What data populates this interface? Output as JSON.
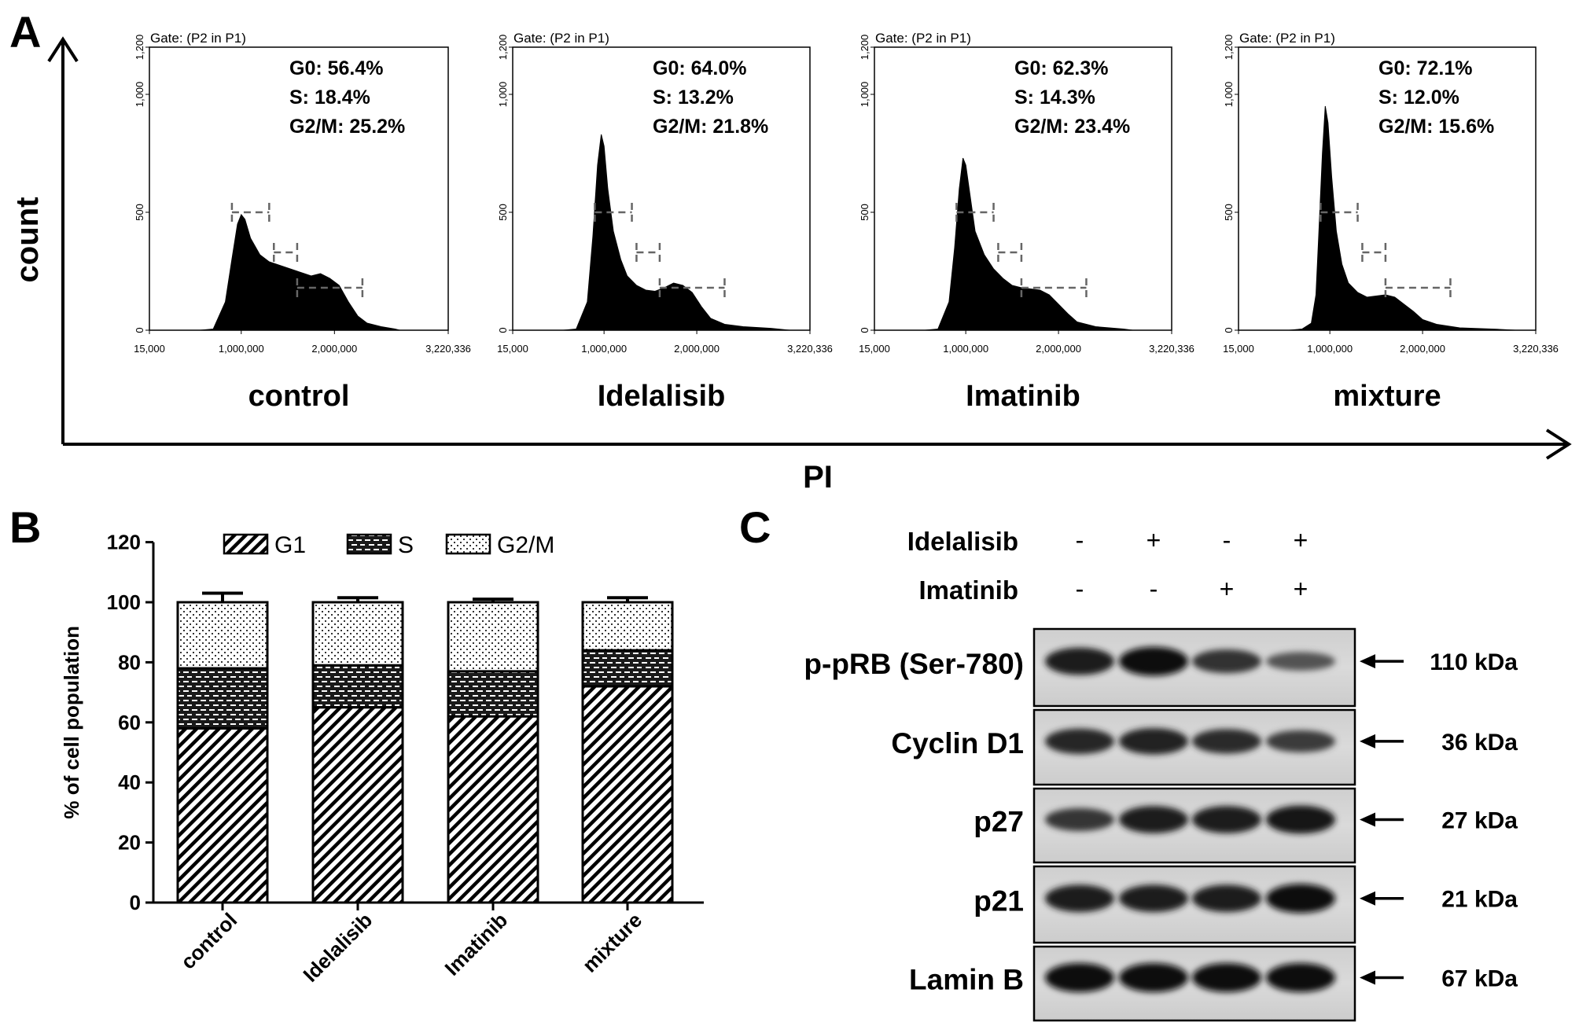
{
  "panel_labels": {
    "a": "A",
    "b": "B",
    "c": "C"
  },
  "panel_a": {
    "y_axis_label": "count",
    "x_axis_label": "PI"
  },
  "chart_data": [
    {
      "type": "area",
      "panel": "A",
      "gate_label": "Gate: (P2 in P1)",
      "y_ticks": [
        "0",
        "500",
        "1,000",
        "1,200"
      ],
      "x_ticks": [
        "15,000",
        "1,000,000",
        "2,000,000",
        "3,220,336"
      ],
      "xlim": [
        15000,
        3220336
      ],
      "ylim": [
        0,
        1200
      ],
      "gate_markers": [
        {
          "x_range": [
            900000,
            1300000
          ],
          "y": 500
        },
        {
          "x_range": [
            1350000,
            1600000
          ],
          "y": 330
        },
        {
          "x_range": [
            1600000,
            2300000
          ],
          "y": 180
        }
      ],
      "histograms": [
        {
          "name": "control",
          "stats": [
            "G0: 56.4%",
            "S: 18.4%",
            "G2/M: 25.2%"
          ],
          "peak": 490,
          "points": [
            [
              560000,
              0
            ],
            [
              700000,
              5
            ],
            [
              830000,
              120
            ],
            [
              900000,
              300
            ],
            [
              960000,
              450
            ],
            [
              1000000,
              490
            ],
            [
              1040000,
              470
            ],
            [
              1100000,
              390
            ],
            [
              1200000,
              320
            ],
            [
              1300000,
              290
            ],
            [
              1450000,
              270
            ],
            [
              1600000,
              250
            ],
            [
              1750000,
              230
            ],
            [
              1850000,
              240
            ],
            [
              1950000,
              220
            ],
            [
              2050000,
              190
            ],
            [
              2150000,
              120
            ],
            [
              2250000,
              60
            ],
            [
              2350000,
              30
            ],
            [
              2500000,
              15
            ],
            [
              2650000,
              5
            ],
            [
              2700000,
              0
            ]
          ]
        },
        {
          "name": "Idelalisib",
          "stats": [
            "G0: 64.0%",
            "S: 13.2%",
            "G2/M: 21.8%"
          ],
          "peak": 830,
          "points": [
            [
              560000,
              0
            ],
            [
              700000,
              5
            ],
            [
              820000,
              120
            ],
            [
              880000,
              400
            ],
            [
              930000,
              700
            ],
            [
              970000,
              830
            ],
            [
              1000000,
              780
            ],
            [
              1040000,
              600
            ],
            [
              1100000,
              420
            ],
            [
              1180000,
              300
            ],
            [
              1250000,
              230
            ],
            [
              1350000,
              190
            ],
            [
              1450000,
              170
            ],
            [
              1550000,
              165
            ],
            [
              1650000,
              180
            ],
            [
              1750000,
              200
            ],
            [
              1850000,
              190
            ],
            [
              1950000,
              160
            ],
            [
              2050000,
              100
            ],
            [
              2150000,
              50
            ],
            [
              2300000,
              25
            ],
            [
              2500000,
              15
            ],
            [
              2800000,
              8
            ],
            [
              3000000,
              0
            ]
          ]
        },
        {
          "name": "Imatinib",
          "stats": [
            "G0: 62.3%",
            "S: 14.3%",
            "G2/M: 23.4%"
          ],
          "peak": 730,
          "points": [
            [
              560000,
              0
            ],
            [
              700000,
              5
            ],
            [
              820000,
              120
            ],
            [
              880000,
              350
            ],
            [
              930000,
              600
            ],
            [
              970000,
              730
            ],
            [
              1000000,
              700
            ],
            [
              1050000,
              560
            ],
            [
              1100000,
              420
            ],
            [
              1200000,
              320
            ],
            [
              1300000,
              260
            ],
            [
              1400000,
              220
            ],
            [
              1500000,
              190
            ],
            [
              1600000,
              180
            ],
            [
              1700000,
              175
            ],
            [
              1800000,
              170
            ],
            [
              1900000,
              150
            ],
            [
              2000000,
              110
            ],
            [
              2100000,
              70
            ],
            [
              2200000,
              35
            ],
            [
              2400000,
              15
            ],
            [
              2700000,
              5
            ],
            [
              2800000,
              0
            ]
          ]
        },
        {
          "name": "mixture",
          "stats": [
            "G0: 72.1%",
            "S: 12.0%",
            "G2/M: 15.6%"
          ],
          "peak": 950,
          "points": [
            [
              560000,
              0
            ],
            [
              700000,
              5
            ],
            [
              800000,
              30
            ],
            [
              850000,
              150
            ],
            [
              880000,
              400
            ],
            [
              920000,
              750
            ],
            [
              950000,
              950
            ],
            [
              980000,
              880
            ],
            [
              1020000,
              650
            ],
            [
              1070000,
              420
            ],
            [
              1130000,
              280
            ],
            [
              1200000,
              200
            ],
            [
              1300000,
              160
            ],
            [
              1400000,
              140
            ],
            [
              1500000,
              145
            ],
            [
              1600000,
              150
            ],
            [
              1700000,
              140
            ],
            [
              1800000,
              110
            ],
            [
              1900000,
              80
            ],
            [
              2000000,
              45
            ],
            [
              2150000,
              25
            ],
            [
              2400000,
              10
            ],
            [
              2800000,
              4
            ],
            [
              3000000,
              0
            ]
          ]
        }
      ]
    },
    {
      "type": "bar",
      "panel": "B",
      "stacked": true,
      "categories": [
        "control",
        "Idelalisib",
        "Imatinib",
        "mixture"
      ],
      "series": [
        {
          "name": "G1",
          "pattern": "diagonal-hatch",
          "values": [
            58,
            65,
            62,
            72
          ]
        },
        {
          "name": "S",
          "pattern": "brick",
          "values": [
            20,
            14,
            15,
            12
          ]
        },
        {
          "name": "G2/M",
          "pattern": "dots",
          "values": [
            22,
            21,
            23,
            16
          ]
        }
      ],
      "errors": {
        "G1": [
          1.5,
          1,
          0.5,
          0.5
        ],
        "S": [
          1.5,
          1.5,
          0.5,
          1.5
        ],
        "G2/M": [
          3,
          1.5,
          1,
          1.5
        ]
      },
      "ylabel": "% of cell population",
      "y_ticks": [
        0,
        20,
        40,
        60,
        80,
        100,
        120
      ],
      "ylim": [
        0,
        120
      ],
      "legend_position": "top"
    }
  ],
  "panel_c": {
    "treatments": [
      {
        "name": "Idelalisib",
        "signs": [
          "-",
          "+",
          "-",
          "+"
        ]
      },
      {
        "name": "Imatinib",
        "signs": [
          "-",
          "-",
          "+",
          "+"
        ]
      }
    ],
    "blots": [
      {
        "protein": "p-pRB (Ser-780)",
        "size": "110 kDa",
        "band_intensity": [
          0.85,
          0.95,
          0.65,
          0.35
        ]
      },
      {
        "protein": "Cyclin D1",
        "size": "36 kDa",
        "band_intensity": [
          0.75,
          0.8,
          0.7,
          0.55
        ]
      },
      {
        "protein": "p27",
        "size": "27 kDa",
        "band_intensity": [
          0.6,
          0.85,
          0.85,
          0.9
        ]
      },
      {
        "protein": "p21",
        "size": "21 kDa",
        "band_intensity": [
          0.85,
          0.85,
          0.85,
          0.95
        ]
      },
      {
        "protein": "Lamin B",
        "size": "67 kDa",
        "band_intensity": [
          0.95,
          0.95,
          0.95,
          0.95
        ]
      }
    ]
  }
}
